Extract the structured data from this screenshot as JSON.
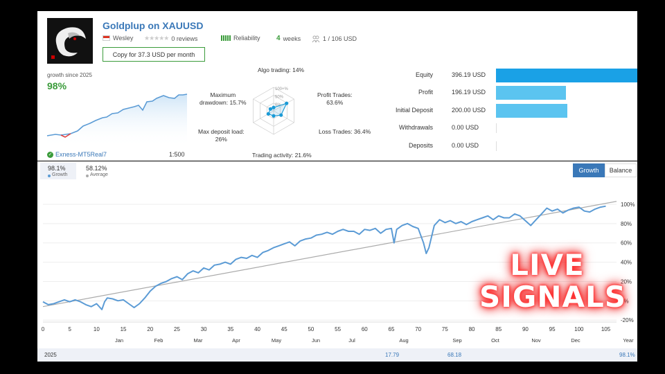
{
  "signal": {
    "title": "Goldplup on XAUUSD",
    "author": "Wesley",
    "reviews": "0 reviews",
    "reliability": "Reliability",
    "weeks_num": "4",
    "weeks_unit": "weeks",
    "subscribers": "1 / 106 USD",
    "copy_button": "Copy for 37.3 USD per month"
  },
  "summary": {
    "growth_label": "growth since 2025",
    "growth_value": "98%",
    "broker": "Exness-MT5Real7",
    "leverage": "1:500"
  },
  "radar": {
    "algo": "Algo trading: 14%",
    "profit": "Profit Trades:\n63.6%",
    "loss": "Loss Trades: 36.4%",
    "activity": "Trading activity: 21.6%",
    "deposit_load": "Max deposit load:\n26%",
    "drawdown": "Maximum\ndrawdown: 15.7%",
    "rings": [
      "100+%",
      "50%",
      "0%"
    ],
    "values": [
      0.14,
      0.636,
      0.364,
      0.216,
      0.26,
      0.157
    ]
  },
  "stats": [
    {
      "label": "Equity",
      "value": "396.19 USD",
      "amount": 396.19
    },
    {
      "label": "Profit",
      "value": "196.19 USD",
      "amount": 196.19
    },
    {
      "label": "Initial Deposit",
      "value": "200.00 USD",
      "amount": 200.0
    },
    {
      "label": "Withdrawals",
      "value": "0.00 USD",
      "amount": 0
    },
    {
      "label": "Deposits",
      "value": "0.00 USD",
      "amount": 0
    }
  ],
  "tabs": {
    "growth_num": "98.1%",
    "growth_sub": "Growth",
    "average_num": "58.12%",
    "average_sub": "Average",
    "btn_growth": "Growth",
    "btn_balance": "Balance"
  },
  "chart_data": {
    "type": "line",
    "x_ticks": [
      0,
      5,
      10,
      15,
      20,
      25,
      30,
      35,
      40,
      45,
      50,
      55,
      60,
      65,
      70,
      75,
      80,
      85,
      90,
      95,
      100,
      105
    ],
    "y_ticks": [
      "100%",
      "80%",
      "60%",
      "40%",
      "20%",
      "0%",
      "-20%"
    ],
    "months": [
      "Jan",
      "Feb",
      "Mar",
      "Apr",
      "May",
      "Jun",
      "Jul",
      "Aug",
      "Sep",
      "Oct",
      "Nov",
      "Dec",
      "Year"
    ],
    "xlim": [
      0,
      107
    ],
    "ylim": [
      -22,
      110
    ],
    "series": [
      {
        "values": [
          [
            0,
            -1
          ],
          [
            1,
            -4
          ],
          [
            2,
            -3
          ],
          [
            3,
            -1
          ],
          [
            4,
            1
          ],
          [
            5,
            -1
          ],
          [
            6,
            1
          ],
          [
            7,
            -1
          ],
          [
            8,
            -4
          ],
          [
            9,
            -6
          ],
          [
            10,
            -3
          ],
          [
            11,
            -9
          ],
          [
            11.5,
            -1
          ],
          [
            12,
            3
          ],
          [
            13,
            2
          ],
          [
            14,
            0
          ],
          [
            15,
            1
          ],
          [
            16,
            -3
          ],
          [
            17,
            -7
          ],
          [
            18,
            -3
          ],
          [
            19,
            3
          ],
          [
            20,
            10
          ],
          [
            21,
            15
          ],
          [
            22,
            18
          ],
          [
            23,
            20
          ],
          [
            24,
            23
          ],
          [
            25,
            25
          ],
          [
            26,
            22
          ],
          [
            27,
            28
          ],
          [
            28,
            31
          ],
          [
            29,
            29
          ],
          [
            30,
            34
          ],
          [
            31,
            32
          ],
          [
            32,
            37
          ],
          [
            33,
            38
          ],
          [
            34,
            40
          ],
          [
            35,
            38
          ],
          [
            36,
            43
          ],
          [
            37,
            45
          ],
          [
            38,
            44
          ],
          [
            39,
            47
          ],
          [
            40,
            45
          ],
          [
            41,
            50
          ],
          [
            42,
            52
          ],
          [
            43,
            55
          ],
          [
            44,
            57
          ],
          [
            45,
            59
          ],
          [
            46,
            61
          ],
          [
            47,
            57
          ],
          [
            48,
            62
          ],
          [
            49,
            64
          ],
          [
            50,
            65
          ],
          [
            51,
            68
          ],
          [
            52,
            69
          ],
          [
            53,
            71
          ],
          [
            54,
            69
          ],
          [
            55,
            72
          ],
          [
            56,
            74
          ],
          [
            57,
            72
          ],
          [
            58,
            72
          ],
          [
            59,
            69
          ],
          [
            60,
            74
          ],
          [
            61,
            73
          ],
          [
            62,
            75
          ],
          [
            63,
            70
          ],
          [
            64,
            74
          ],
          [
            65,
            75
          ],
          [
            65.5,
            60
          ],
          [
            66,
            74
          ],
          [
            67,
            78
          ],
          [
            68,
            80
          ],
          [
            69,
            77
          ],
          [
            70,
            75
          ],
          [
            71,
            60
          ],
          [
            71.5,
            49
          ],
          [
            72,
            55
          ],
          [
            73,
            78
          ],
          [
            74,
            84
          ],
          [
            75,
            81
          ],
          [
            76,
            83
          ],
          [
            77,
            80
          ],
          [
            78,
            82
          ],
          [
            79,
            79
          ],
          [
            80,
            82
          ],
          [
            81,
            84
          ],
          [
            82,
            86
          ],
          [
            83,
            88
          ],
          [
            84,
            84
          ],
          [
            85,
            88
          ],
          [
            86,
            86
          ],
          [
            87,
            86
          ],
          [
            88,
            90
          ],
          [
            89,
            88
          ],
          [
            90,
            83
          ],
          [
            91,
            78
          ],
          [
            92,
            84
          ],
          [
            93,
            90
          ],
          [
            94,
            96
          ],
          [
            95,
            93
          ],
          [
            96,
            95
          ],
          [
            97,
            91
          ],
          [
            98,
            94
          ],
          [
            99,
            96
          ],
          [
            100,
            97
          ],
          [
            101,
            93
          ],
          [
            102,
            92
          ],
          [
            103,
            95
          ],
          [
            104,
            97
          ],
          [
            105,
            98
          ]
        ]
      }
    ],
    "trend": [
      [
        0,
        -6
      ],
      [
        107,
        103
      ]
    ],
    "footer": {
      "year": "2025",
      "aug": "17.79",
      "sep": "68.18",
      "total": "98.1%"
    }
  },
  "overlay": {
    "line1": "LIVE",
    "line2": "SIGNALS"
  },
  "colors": {
    "accent": "#3a78b8",
    "green": "#3a9b3a",
    "bar_main": "#1aa1e6",
    "bar_light": "#5bc4f0",
    "line": "#5b9bd5"
  }
}
